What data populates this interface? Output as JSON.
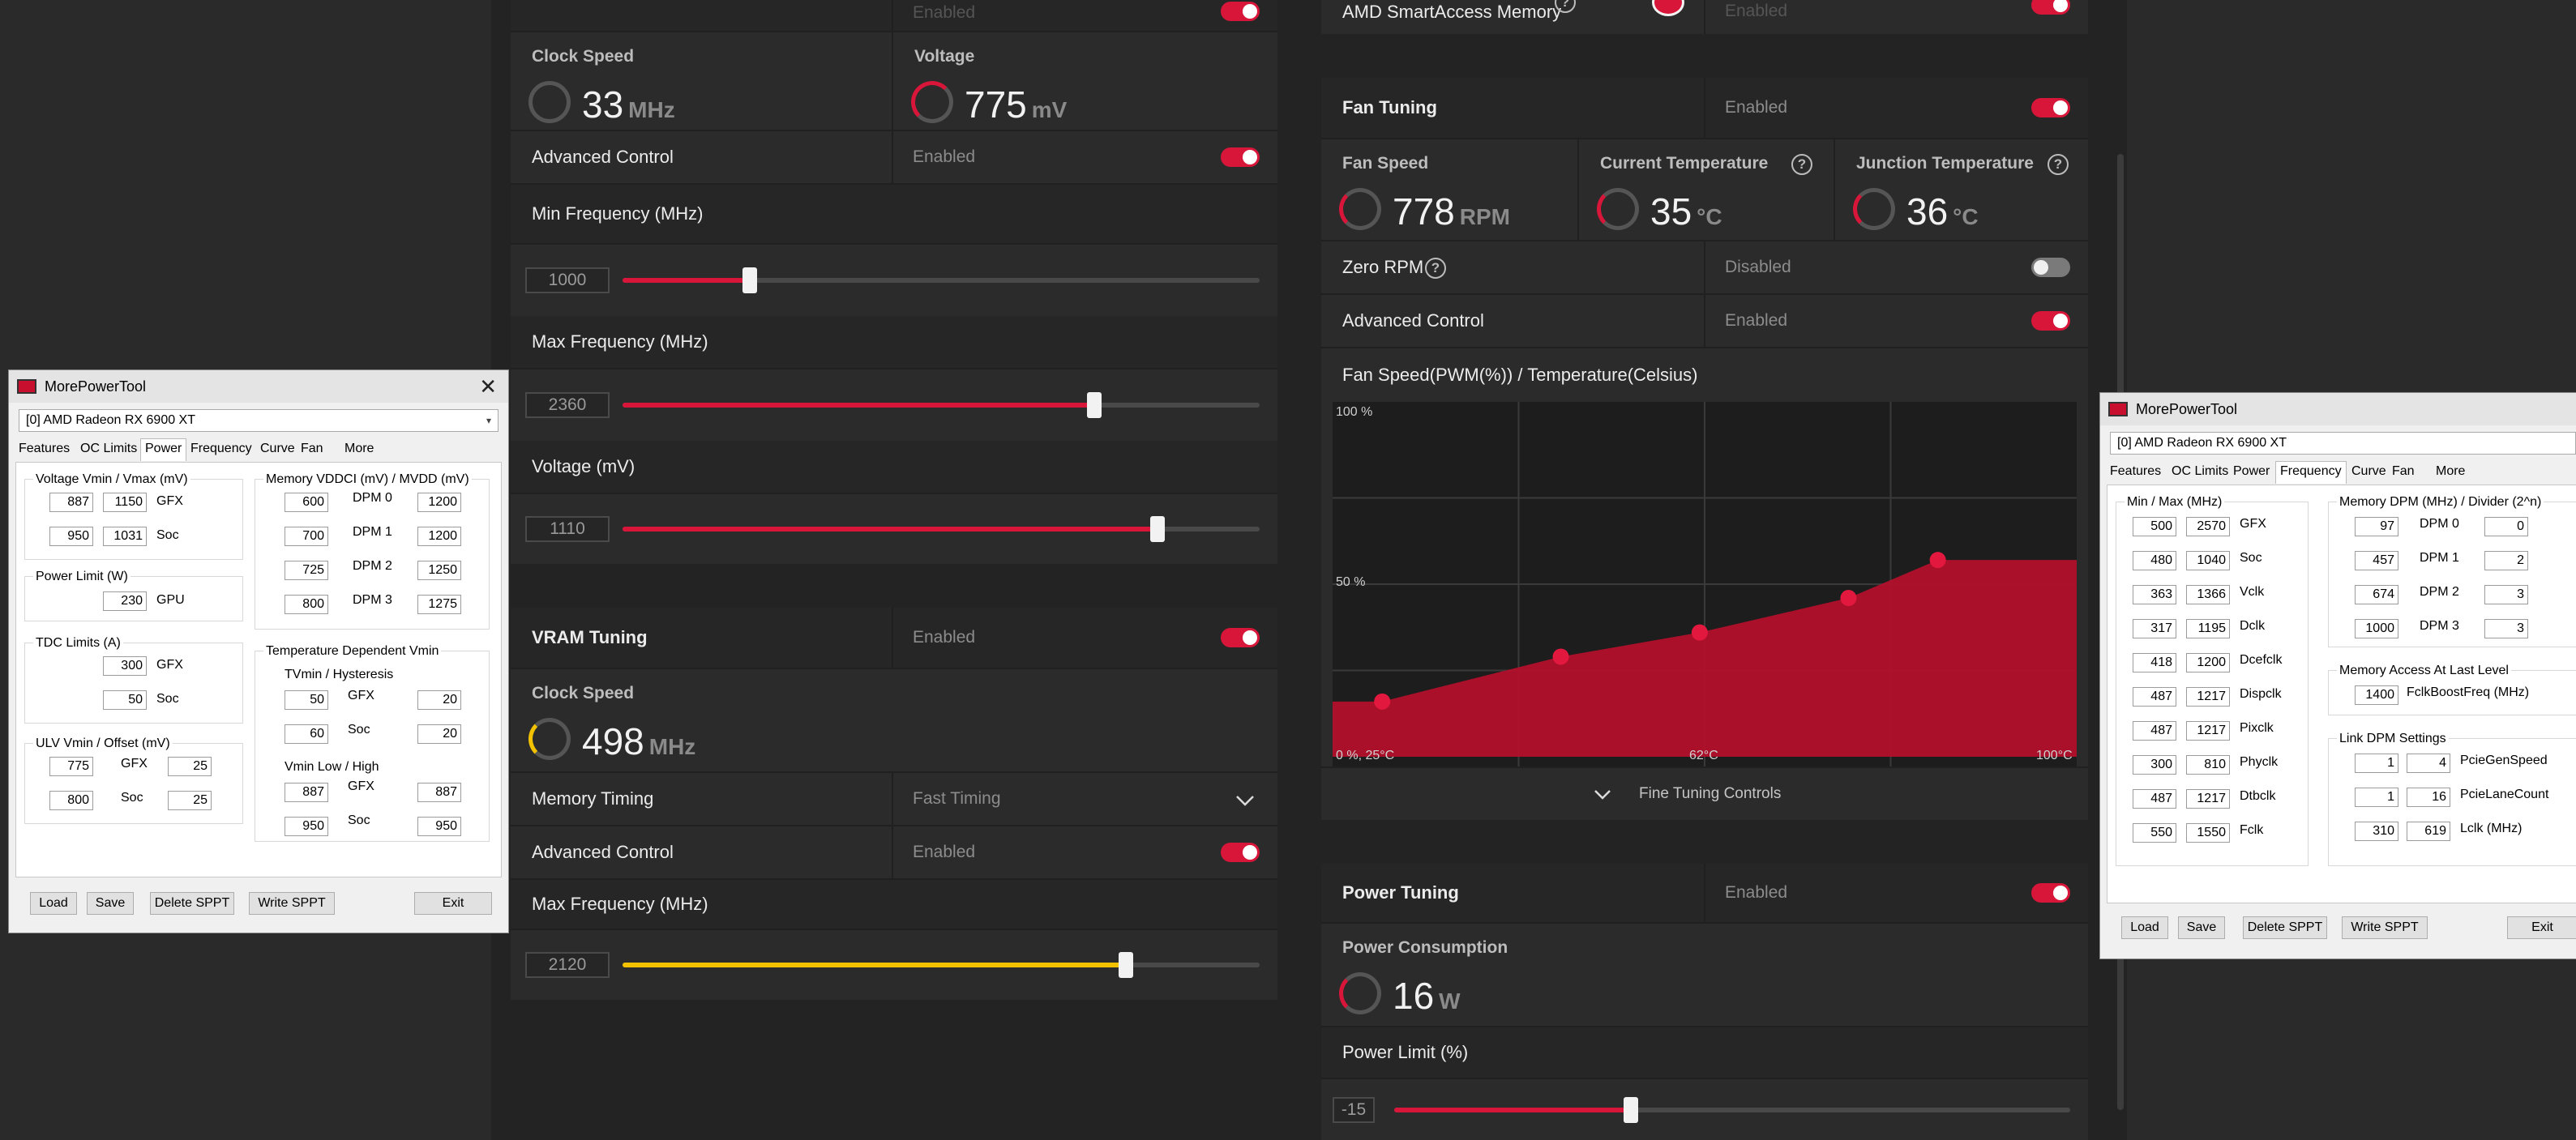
{
  "gpu_tuning": {
    "header_value": "Enabled",
    "clock_speed": {
      "label": "Clock Speed",
      "value": "33",
      "unit": "MHz"
    },
    "voltage": {
      "label": "Voltage",
      "value": "775",
      "unit": "mV"
    },
    "advanced_control": {
      "label": "Advanced Control",
      "value": "Enabled"
    },
    "min_frequency": {
      "label": "Min Frequency (MHz)",
      "value": "1000",
      "fraction": 0.2
    },
    "max_frequency": {
      "label": "Max Frequency (MHz)",
      "value": "2360",
      "fraction": 0.74
    },
    "voltage_mv": {
      "label": "Voltage (mV)",
      "value": "1110",
      "fraction": 0.84
    }
  },
  "vram_tuning": {
    "title": "VRAM Tuning",
    "value": "Enabled",
    "clock_speed": {
      "label": "Clock Speed",
      "value": "498",
      "unit": "MHz"
    },
    "memory_timing": {
      "label": "Memory Timing",
      "value": "Fast Timing"
    },
    "advanced_control": {
      "label": "Advanced Control",
      "value": "Enabled"
    },
    "max_frequency": {
      "label": "Max Frequency (MHz)",
      "value": "2120",
      "fraction": 0.79
    }
  },
  "sam": {
    "label": "AMD SmartAccess Memory",
    "value": "Enabled"
  },
  "fan_tuning": {
    "title": "Fan Tuning",
    "value": "Enabled",
    "fan_speed": {
      "label": "Fan Speed",
      "value": "778",
      "unit": "RPM"
    },
    "current_temp": {
      "label": "Current Temperature",
      "value": "35",
      "unit": "°C"
    },
    "junction_temp": {
      "label": "Junction Temperature",
      "value": "36",
      "unit": "°C"
    },
    "zero_rpm": {
      "label": "Zero RPM",
      "value": "Disabled"
    },
    "advanced_control": {
      "label": "Advanced Control",
      "value": "Enabled"
    },
    "chart_title": "Fan Speed(PWM(%)) / Temperature(Celsius)",
    "fine_tuning": "Fine Tuning Controls",
    "help_glyph": "?"
  },
  "chart_data": {
    "type": "area",
    "title": "Fan Speed(PWM(%)) / Temperature(Celsius)",
    "y_tick_labels": [
      "100 %",
      "50 %"
    ],
    "x_tick_labels": [
      "0 %, 25°C",
      "62°C",
      "100°C"
    ],
    "xlim": [
      25,
      100
    ],
    "ylim": [
      0,
      100
    ],
    "grid": true,
    "series": [
      {
        "x": [
          25,
          30,
          48,
          62,
          77,
          86,
          100
        ],
        "y": [
          16,
          16,
          29,
          36,
          46,
          57,
          57
        ]
      }
    ],
    "points": [
      {
        "x": 30,
        "y": 16
      },
      {
        "x": 48,
        "y": 29
      },
      {
        "x": 62,
        "y": 36
      },
      {
        "x": 77,
        "y": 46
      },
      {
        "x": 86,
        "y": 57
      }
    ]
  },
  "power_tuning": {
    "title": "Power Tuning",
    "value": "Enabled",
    "power_consumption": {
      "label": "Power Consumption",
      "value": "16",
      "unit": "W"
    },
    "power_limit": {
      "label": "Power Limit (%)",
      "value": "-15",
      "fraction": 0.35
    }
  },
  "mpt_common": {
    "title": "MorePowerTool",
    "device": "[0] AMD Radeon RX 6900 XT",
    "tabs": [
      "Features",
      "OC Limits",
      "Power",
      "Frequency",
      "Curve",
      "Fan",
      "More"
    ],
    "buttons": {
      "load": "Load",
      "save": "Save",
      "delete": "Delete SPPT",
      "write": "Write SPPT",
      "exit": "Exit"
    },
    "close_glyph": "✕",
    "caret_glyph": "▾"
  },
  "mpt_power": {
    "voltage_group": "Voltage Vmin / Vmax (mV)",
    "voltage_rows": [
      {
        "min": "887",
        "max": "1150",
        "label": "GFX"
      },
      {
        "min": "950",
        "max": "1031",
        "label": "Soc"
      }
    ],
    "power_group": "Power Limit (W)",
    "power_value": "230",
    "power_label": "GPU",
    "tdc_group": "TDC Limits (A)",
    "tdc_rows": [
      {
        "value": "300",
        "label": "GFX"
      },
      {
        "value": "50",
        "label": "Soc"
      }
    ],
    "ulv_group": "ULV Vmin / Offset (mV)",
    "ulv_rows": [
      {
        "a": "775",
        "label": "GFX",
        "b": "25"
      },
      {
        "a": "800",
        "label": "Soc",
        "b": "25"
      }
    ],
    "mem_group": "Memory VDDCI (mV) / MVDD (mV)",
    "mem_rows": [
      {
        "a": "600",
        "label": "DPM 0",
        "b": "1200"
      },
      {
        "a": "700",
        "label": "DPM 1",
        "b": "1200"
      },
      {
        "a": "725",
        "label": "DPM 2",
        "b": "1250"
      },
      {
        "a": "800",
        "label": "DPM 3",
        "b": "1275"
      }
    ],
    "temp_group": "Temperature Dependent Vmin",
    "tvmin_label": "TVmin / Hysteresis",
    "tvmin_rows": [
      {
        "a": "50",
        "label": "GFX",
        "b": "20"
      },
      {
        "a": "60",
        "label": "Soc",
        "b": "20"
      }
    ],
    "vmin_label": "Vmin Low / High",
    "vmin_rows": [
      {
        "a": "887",
        "label": "GFX",
        "b": "887"
      },
      {
        "a": "950",
        "label": "Soc",
        "b": "950"
      }
    ]
  },
  "mpt_freq": {
    "minmax_group": "Min / Max (MHz)",
    "minmax_rows": [
      {
        "min": "500",
        "max": "2570",
        "label": "GFX"
      },
      {
        "min": "480",
        "max": "1040",
        "label": "Soc"
      },
      {
        "min": "363",
        "max": "1366",
        "label": "Vclk"
      },
      {
        "min": "317",
        "max": "1195",
        "label": "Dclk"
      },
      {
        "min": "418",
        "max": "1200",
        "label": "Dcefclk"
      },
      {
        "min": "487",
        "max": "1217",
        "label": "Dispclk"
      },
      {
        "min": "487",
        "max": "1217",
        "label": "Pixclk"
      },
      {
        "min": "300",
        "max": "810",
        "label": "Phyclk"
      },
      {
        "min": "487",
        "max": "1217",
        "label": "Dtbclk"
      },
      {
        "min": "550",
        "max": "1550",
        "label": "Fclk"
      }
    ],
    "mem_group": "Memory DPM (MHz) / Divider (2^n)",
    "mem_rows": [
      {
        "a": "97",
        "label": "DPM 0",
        "b": "0"
      },
      {
        "a": "457",
        "label": "DPM 1",
        "b": "2"
      },
      {
        "a": "674",
        "label": "DPM 2",
        "b": "3"
      },
      {
        "a": "1000",
        "label": "DPM 3",
        "b": "3"
      }
    ],
    "access_group": "Memory Access At Last Level",
    "access_value": "1400",
    "access_label": "FclkBoostFreq (MHz)",
    "link_group": "Link DPM Settings",
    "link_rows": [
      {
        "a": "1",
        "b": "4",
        "label": "PcieGenSpeed"
      },
      {
        "a": "1",
        "b": "16",
        "label": "PcieLaneCount"
      },
      {
        "a": "310",
        "b": "619",
        "label": "Lclk (MHz)"
      }
    ]
  }
}
